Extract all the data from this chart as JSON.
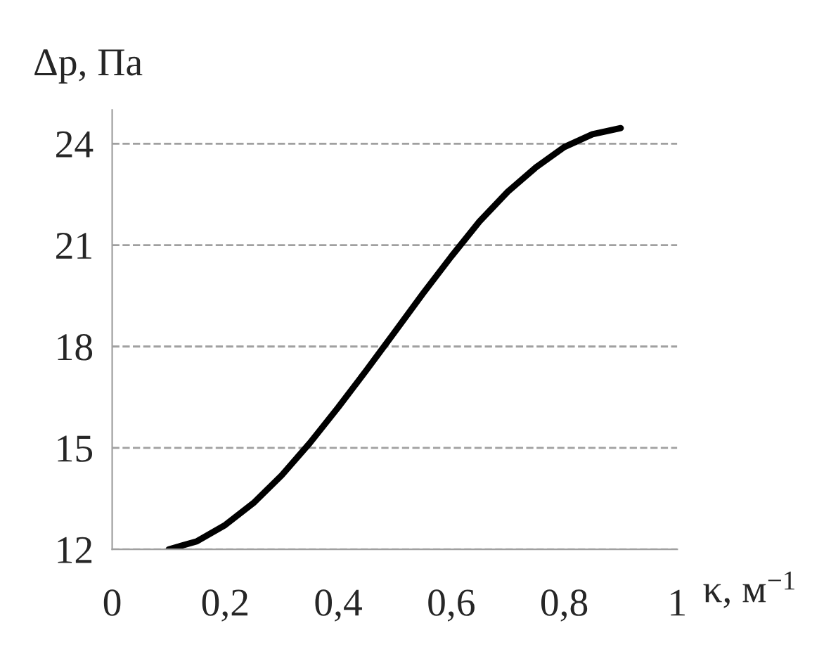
{
  "chart_data": {
    "type": "line",
    "xlabel": "κ, м$^{−1}$",
    "ylabel": "Δp, Па",
    "x": [
      0.1,
      0.15,
      0.2,
      0.25,
      0.3,
      0.35,
      0.4,
      0.45,
      0.5,
      0.55,
      0.6,
      0.65,
      0.7,
      0.75,
      0.8,
      0.85,
      0.9
    ],
    "series": [
      {
        "color": "#000000",
        "values": [
          12.0,
          12.24,
          12.72,
          13.37,
          14.19,
          15.15,
          16.2,
          17.3,
          18.43,
          19.57,
          20.66,
          21.7,
          22.58,
          23.3,
          23.9,
          24.28,
          24.46
        ]
      }
    ],
    "xlim": [
      0,
      1
    ],
    "xticks": [
      0,
      {
        "value": 0.2,
        "label": "0,2"
      },
      {
        "value": 0.4,
        "label": "0,4"
      },
      {
        "value": 0.6,
        "label": "0,6"
      },
      {
        "value": 0.8,
        "label": "0,8"
      },
      1
    ],
    "ylim": [
      12,
      25
    ],
    "yticks": [
      12,
      15,
      18,
      21,
      24
    ],
    "grid": "y",
    "legend": false,
    "marker": "none",
    "line_style": "solid"
  }
}
